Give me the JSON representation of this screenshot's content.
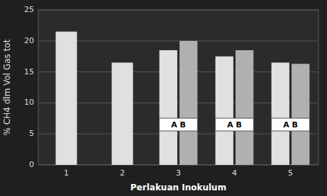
{
  "chart_data": {
    "type": "bar",
    "categories": [
      "1",
      "2",
      "3",
      "4",
      "5"
    ],
    "series": [
      {
        "color": "#e0e0e0",
        "values": [
          21.5,
          16.5,
          18.5,
          17.5,
          16.5
        ]
      },
      {
        "color": "#b0b0b0",
        "values": [
          null,
          null,
          20.0,
          18.5,
          16.3
        ]
      }
    ],
    "xlabel": "Perlakuan Inokulum",
    "ylabel": "% CH4 dlm Vol Gas tot",
    "ylim": [
      0,
      25
    ],
    "yticks": [
      0,
      5,
      10,
      15,
      20,
      25
    ],
    "grid": true,
    "annotations": [
      {
        "text": "A B",
        "x": "3",
        "y": 6.5
      },
      {
        "text": "A B",
        "x": "4",
        "y": 6.5
      },
      {
        "text": "A B",
        "x": "5",
        "y": 6.5
      }
    ]
  }
}
